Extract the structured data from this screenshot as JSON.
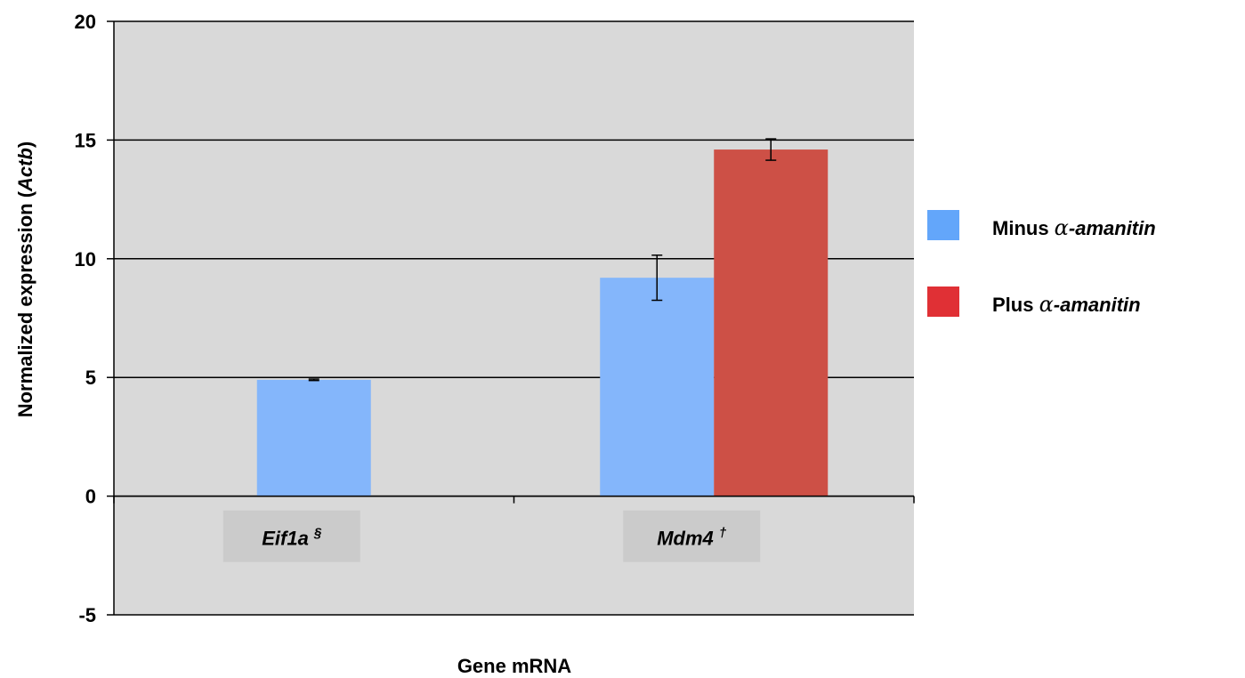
{
  "chart_data": {
    "type": "bar",
    "xlabel": "Gene mRNA",
    "ylabel_prefix": "Normalized expression (",
    "ylabel_italic": "Actb",
    "ylabel_suffix": ")",
    "ylim": [
      -5,
      20
    ],
    "yticks": [
      "-5",
      "0",
      "5",
      "10",
      "15",
      "20"
    ],
    "ytick_values": [
      -5,
      0,
      5,
      10,
      15,
      20
    ],
    "grid": true,
    "legend_position": "right",
    "categories": [
      {
        "name": "Eif1a",
        "superscript": "§"
      },
      {
        "name": "Mdm4",
        "superscript": "†"
      }
    ],
    "series": [
      {
        "name_prefix": "Minus ",
        "name_alpha": "α",
        "name_suffix": "-amanitin",
        "color": "#84b6fb",
        "legend_color": "#63a6fa",
        "values": [
          4.9,
          9.2
        ],
        "errors": [
          0.03,
          0.95
        ]
      },
      {
        "name_prefix": "Plus ",
        "name_alpha": "α",
        "name_suffix": "-amanitin",
        "color": "#cd5046",
        "legend_color": "#e03035",
        "values": [
          null,
          14.6
        ],
        "errors": [
          null,
          0.45
        ]
      }
    ],
    "colors": {
      "plot_background": "#d9d9d9",
      "gridline": "#000000",
      "category_label_box": "#cbcbcb"
    }
  }
}
